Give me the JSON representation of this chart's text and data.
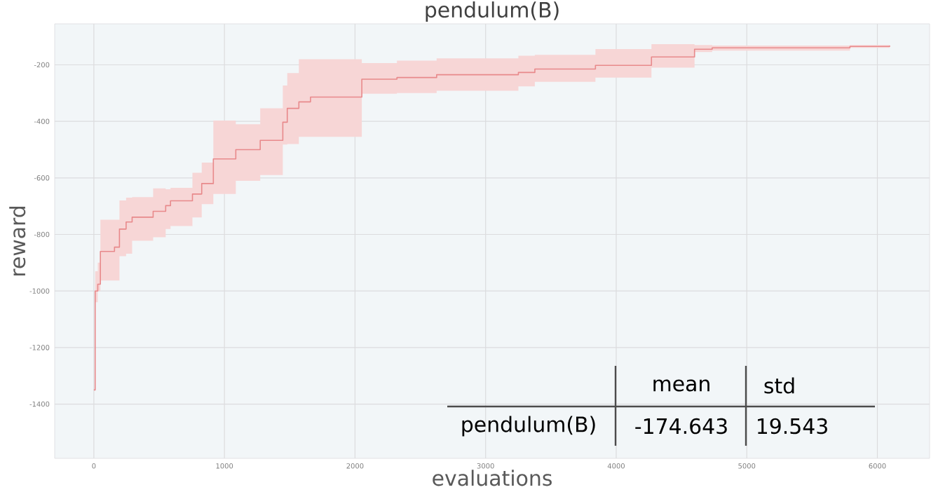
{
  "chart_data": {
    "type": "step",
    "title": "pendulum(B)",
    "xlabel": "evaluations",
    "ylabel": "reward",
    "xlim": [
      -300,
      6400
    ],
    "ylim": [
      -1592,
      -55
    ],
    "xticks": [
      0,
      1000,
      2000,
      3000,
      4000,
      5000,
      6000
    ],
    "yticks": [
      -1400,
      -1200,
      -1000,
      -800,
      -600,
      -400,
      -200
    ],
    "grid": true,
    "annotations": [
      "mean",
      "std",
      "pendulum(B)",
      "-174.643",
      "19.543"
    ],
    "series": [
      {
        "color": "#e8898b",
        "x": [
          0,
          10,
          30,
          50,
          158,
          196,
          247,
          293,
          454,
          550,
          587,
          755,
          826,
          915,
          1087,
          1274,
          1447,
          1481,
          1570,
          1659,
          2052,
          2321,
          2625,
          3251,
          3377,
          3841,
          4270,
          4600,
          4735,
          5790,
          6094
        ],
        "values": [
          -1350,
          -1000,
          -976,
          -860,
          -845,
          -781,
          -756,
          -739,
          -718,
          -698,
          -681,
          -657,
          -620,
          -533,
          -500,
          -467,
          -403,
          -354,
          -331,
          -314,
          -251,
          -245,
          -235,
          -227,
          -215,
          -202,
          -172,
          -145,
          -140,
          -135,
          -132
        ],
        "lower": [
          -1350,
          -1040,
          -1000,
          -963,
          -963,
          -877,
          -868,
          -822,
          -810,
          -781,
          -770,
          -740,
          -693,
          -657,
          -610,
          -590,
          -482,
          -480,
          -455,
          -455,
          -302,
          -300,
          -292,
          -276,
          -260,
          -245,
          -210,
          -155,
          -150,
          -140,
          -134
        ],
        "upper": [
          -1350,
          -930,
          -900,
          -748,
          -748,
          -680,
          -670,
          -668,
          -637,
          -640,
          -635,
          -582,
          -546,
          -397,
          -410,
          -354,
          -273,
          -229,
          -180,
          -180,
          -194,
          -185,
          -177,
          -168,
          -165,
          -144,
          -127,
          -130,
          -132,
          -130,
          -130
        ]
      }
    ]
  }
}
